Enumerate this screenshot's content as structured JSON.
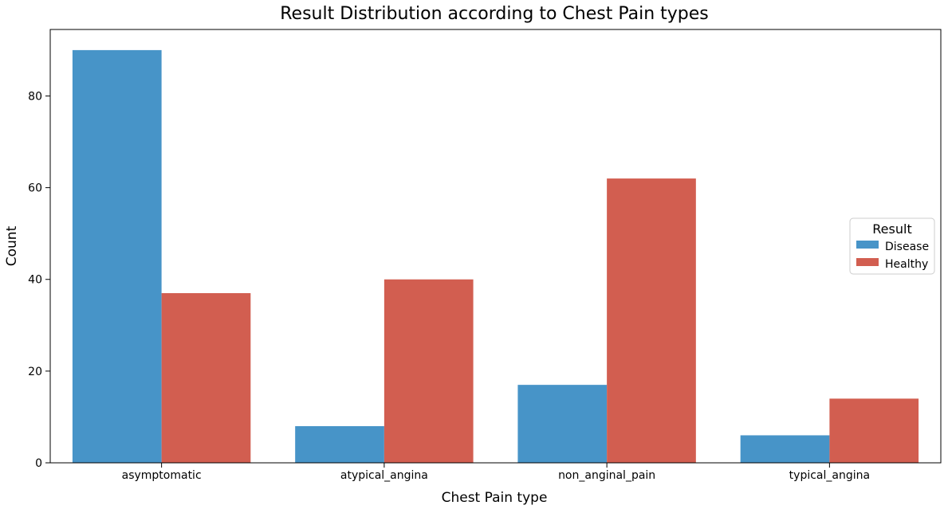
{
  "chart_data": {
    "type": "bar",
    "title": "Result Distribution according to Chest Pain types",
    "xlabel": "Chest Pain type",
    "ylabel": "Count",
    "categories": [
      "asymptomatic",
      "atypical_angina",
      "non_anginal_pain",
      "typical_angina"
    ],
    "series": [
      {
        "name": "Disease",
        "values": [
          90,
          8,
          17,
          6
        ],
        "color": "#4794c8"
      },
      {
        "name": "Healthy",
        "values": [
          37,
          40,
          62,
          14
        ],
        "color": "#d25e50"
      }
    ],
    "ylim": [
      0,
      94.5
    ],
    "yticks": [
      "0",
      "20",
      "40",
      "60",
      "80"
    ],
    "grid": false,
    "legend": {
      "title": "Result",
      "placement": "center-right"
    }
  }
}
